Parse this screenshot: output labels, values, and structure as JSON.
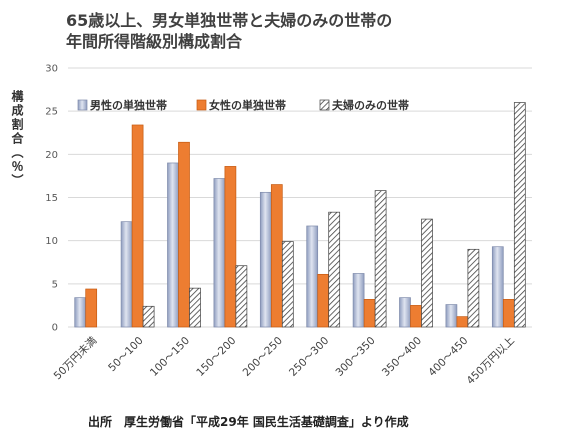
{
  "title_line1": "65歳以上、男女単独世帯と夫婦のみの世帯の",
  "title_line2": "年間所得階級別構成割合",
  "source": "出所　厚生労働省「平成29年 国民生活基礎調査」より作成",
  "colors": {
    "male": "#b4bfd9",
    "female": "#ed7d31",
    "couple_stroke": "#404040",
    "grid": "#d9d9d9"
  },
  "chart_data": {
    "type": "bar",
    "title": "65歳以上、男女単独世帯と夫婦のみの世帯の 年間所得階級別構成割合",
    "xlabel": "",
    "ylabel": "構成割合（％）",
    "ylim": [
      0,
      30
    ],
    "yticks": [
      0,
      5,
      10,
      15,
      20,
      25,
      30
    ],
    "grid": true,
    "legend_position": "top",
    "categories": [
      "50万円未満",
      "50～100",
      "100～150",
      "150～200",
      "200～250",
      "250～300",
      "300～350",
      "350～400",
      "400～450",
      "450万円以上"
    ],
    "series": [
      {
        "name": "男性の単独世帯",
        "values": [
          3.4,
          12.2,
          19.0,
          17.2,
          15.6,
          11.7,
          6.2,
          3.4,
          2.6,
          9.3
        ]
      },
      {
        "name": "女性の単独世帯",
        "values": [
          4.4,
          23.4,
          21.4,
          18.6,
          16.5,
          6.1,
          3.2,
          2.5,
          1.2,
          3.2
        ]
      },
      {
        "name": "夫婦のみの世帯",
        "values": [
          0,
          2.4,
          4.5,
          7.1,
          9.9,
          13.3,
          15.8,
          12.5,
          9.0,
          26.0
        ]
      }
    ]
  }
}
